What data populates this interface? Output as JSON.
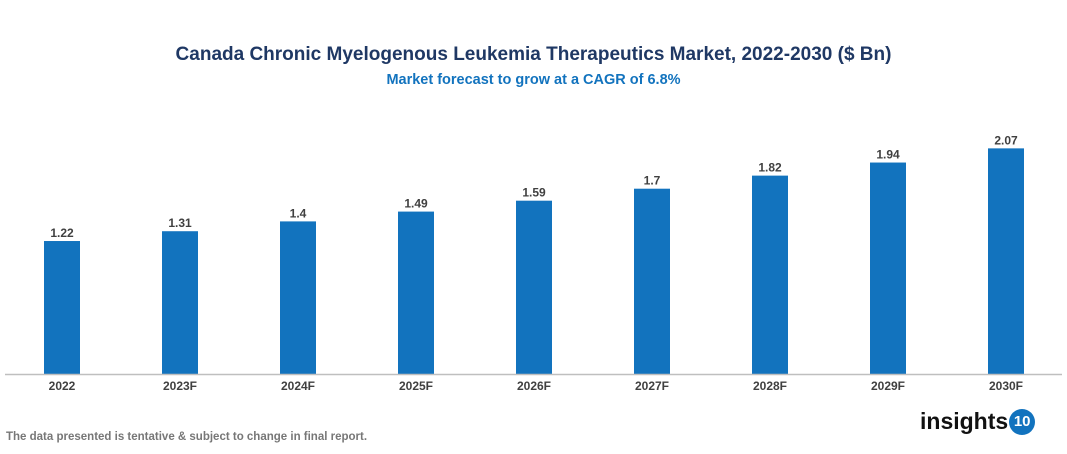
{
  "chart_data": {
    "type": "bar",
    "title": "Canada Chronic Myelogenous Leukemia Therapeutics Market, 2022-2030 ($ Bn)",
    "subtitle": "Market forecast to grow at a CAGR of 6.8%",
    "categories": [
      "2022",
      "2023F",
      "2024F",
      "2025F",
      "2026F",
      "2027F",
      "2028F",
      "2029F",
      "2030F"
    ],
    "values": [
      1.22,
      1.31,
      1.4,
      1.49,
      1.59,
      1.7,
      1.82,
      1.94,
      2.07
    ],
    "data_labels": [
      "1.22",
      "1.31",
      "1.4",
      "1.49",
      "1.59",
      "1.7",
      "1.82",
      "1.94",
      "2.07"
    ],
    "xlabel": "",
    "ylabel": "",
    "ylim": [
      0,
      2.2
    ],
    "grid": false,
    "bar_color": "#1273be"
  },
  "footer": "The data presented is tentative & subject to change in final report.",
  "logo": {
    "text": "insights",
    "badge": "10"
  }
}
